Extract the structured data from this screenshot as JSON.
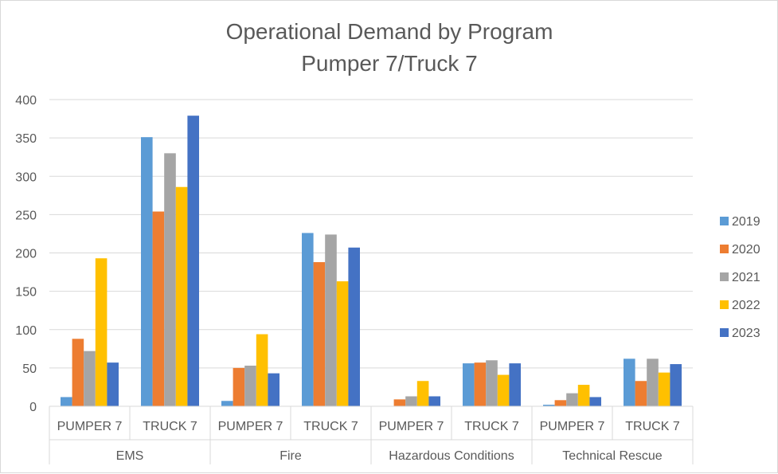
{
  "chart_data": {
    "type": "bar",
    "title": "Operational Demand by Program",
    "subtitle": "Pumper 7/Truck 7",
    "groups": [
      {
        "name": "EMS",
        "categories": [
          "PUMPER 7",
          "TRUCK 7"
        ]
      },
      {
        "name": "Fire",
        "categories": [
          "PUMPER 7",
          "TRUCK 7"
        ]
      },
      {
        "name": "Hazardous Conditions",
        "categories": [
          "PUMPER 7",
          "TRUCK 7"
        ]
      },
      {
        "name": "Technical Rescue",
        "categories": [
          "PUMPER 7",
          "TRUCK 7"
        ]
      }
    ],
    "series": [
      {
        "name": "2019",
        "color": "#5b9bd5",
        "values": [
          12,
          351,
          7,
          226,
          0,
          56,
          2,
          62
        ]
      },
      {
        "name": "2020",
        "color": "#ed7d31",
        "values": [
          88,
          254,
          50,
          188,
          9,
          57,
          8,
          33
        ]
      },
      {
        "name": "2021",
        "color": "#a5a5a5",
        "values": [
          72,
          330,
          53,
          224,
          13,
          60,
          17,
          62
        ]
      },
      {
        "name": "2022",
        "color": "#ffc000",
        "values": [
          193,
          286,
          94,
          163,
          33,
          41,
          28,
          44
        ]
      },
      {
        "name": "2023",
        "color": "#4472c4",
        "values": [
          57,
          379,
          43,
          207,
          13,
          56,
          12,
          55
        ]
      }
    ],
    "ylim": [
      0,
      400
    ],
    "yticks": [
      0,
      50,
      100,
      150,
      200,
      250,
      300,
      350,
      400
    ],
    "grid": true,
    "legend": "right",
    "xlabel": "",
    "ylabel": ""
  }
}
